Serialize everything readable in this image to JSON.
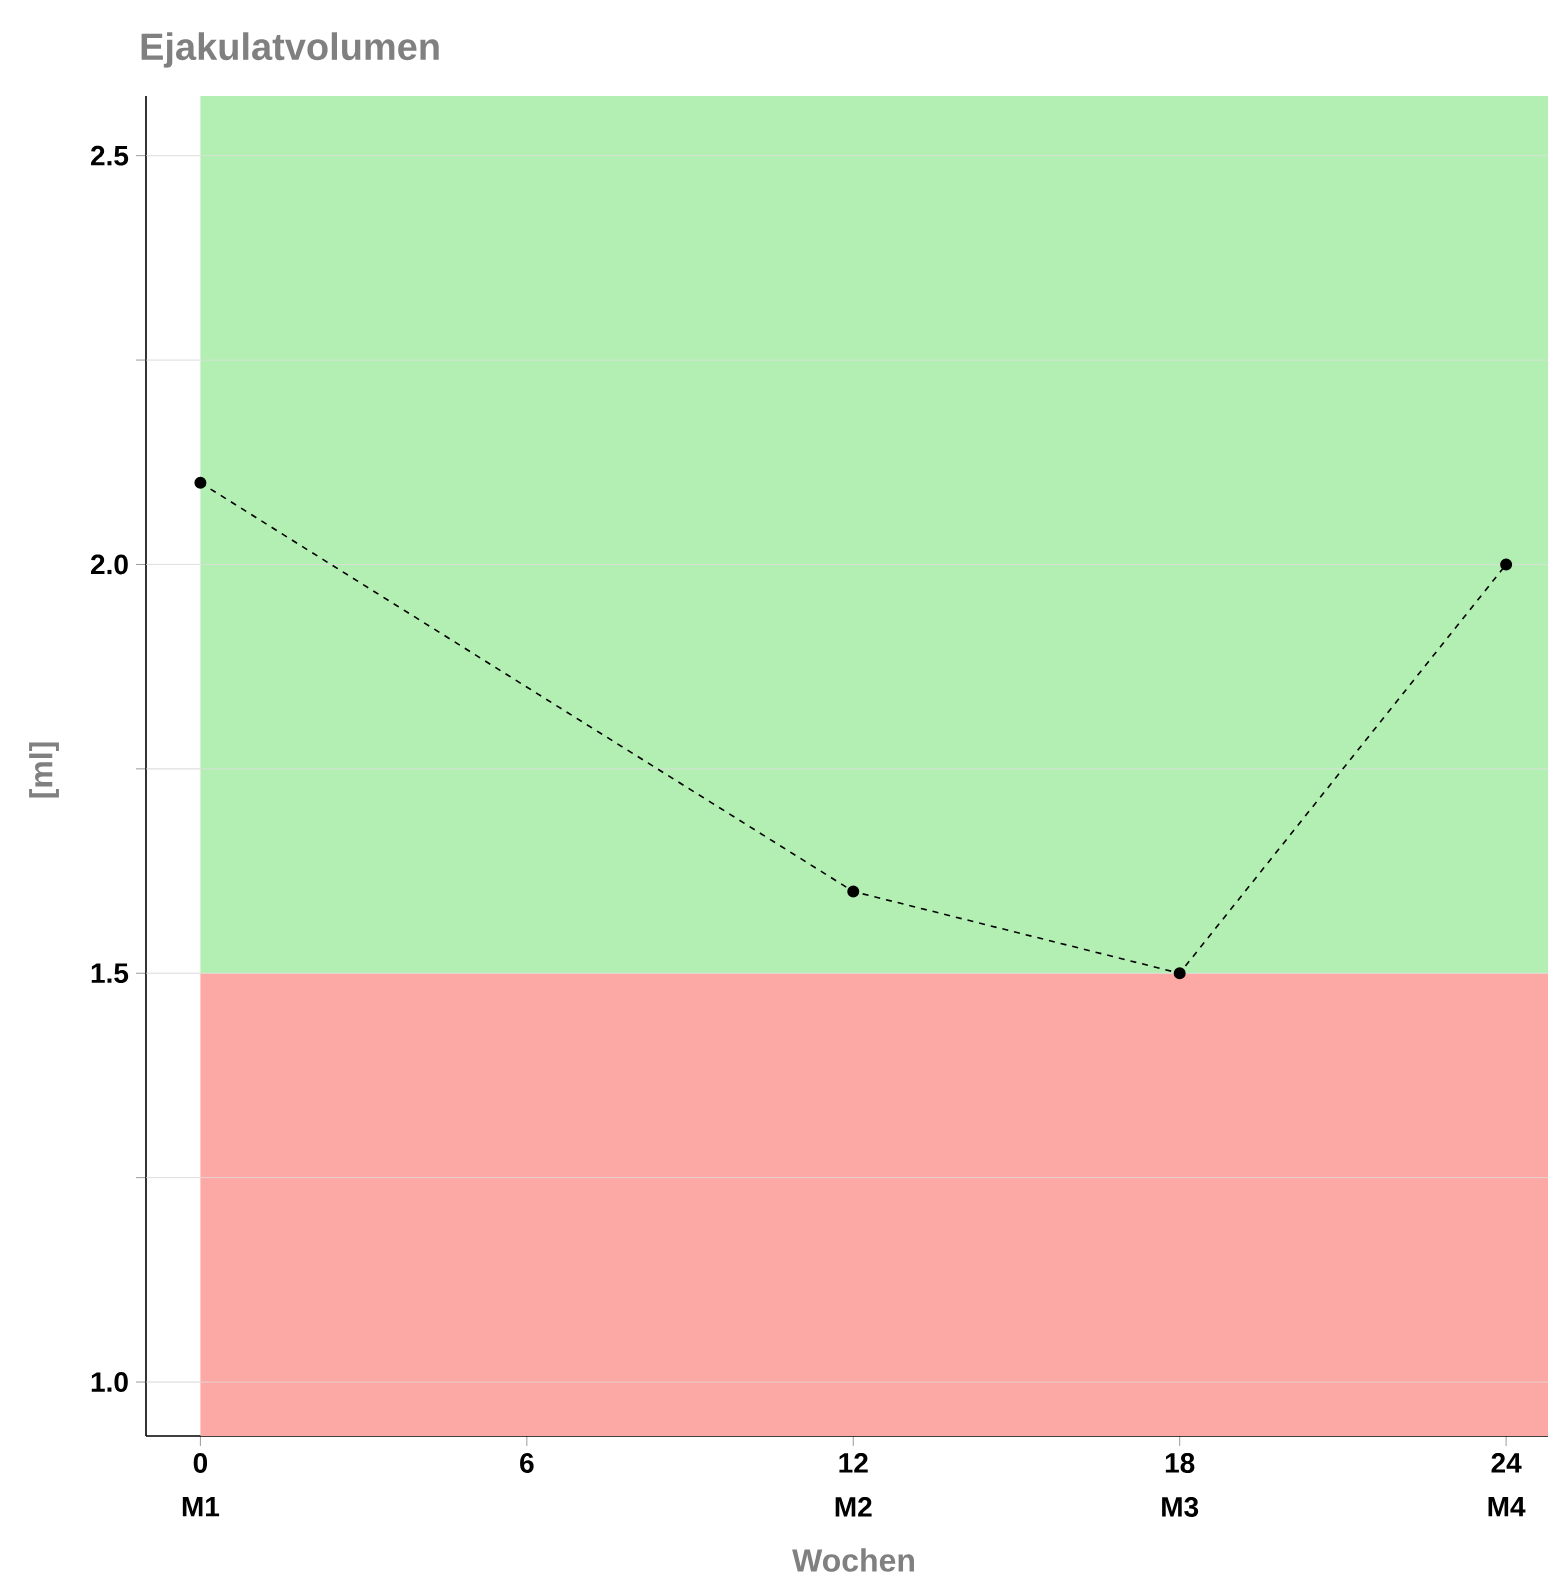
{
  "chart_data": {
    "type": "line",
    "title": "Ejakulatvolumen",
    "xlabel": "Wochen",
    "ylabel": "[ml]",
    "x": [
      0,
      12,
      18,
      24
    ],
    "series": [
      {
        "color": "#000000",
        "values": [
          2.1,
          1.6,
          1.5,
          2.0
        ]
      }
    ],
    "xlim": [
      -1.0,
      24.77
    ],
    "ylim": [
      0.934,
      2.573
    ],
    "xticks": [
      0,
      6,
      12,
      18,
      24
    ],
    "annotations": [
      "M1",
      "M2",
      "M3",
      "M4"
    ],
    "yticks": [
      {
        "value": 1.0,
        "label": "1.0"
      },
      {
        "value": 1.25,
        "label": null
      },
      {
        "value": 1.5,
        "label": "1.5"
      },
      {
        "value": 1.75,
        "label": null
      },
      {
        "value": 2.0,
        "label": "2.0"
      },
      {
        "value": 2.25,
        "label": null
      },
      {
        "value": 2.5,
        "label": "2.5"
      }
    ],
    "bands": [
      {
        "axis": "y",
        "from": 0.934,
        "to": 1.5,
        "color": "#fca9a5"
      },
      {
        "axis": "y",
        "from": 1.5,
        "to": 2.573,
        "color": "#b3eeb3"
      }
    ],
    "grid": "y",
    "marker": "circle",
    "line_style": "dashed"
  }
}
